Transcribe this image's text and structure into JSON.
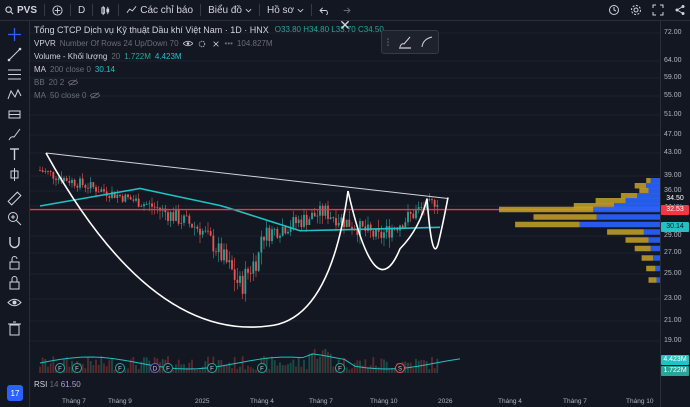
{
  "topbar": {
    "symbol": "PVS",
    "interval": "D",
    "indicators_label": "Các chỉ báo",
    "chart_type_label": "Biểu đồ",
    "template_label": "Hồ sơ"
  },
  "header": {
    "title": "Tổng CTCP Dịch vụ Kỹ thuật Dầu khí Việt Nam · 1D · HNX",
    "ohlc": {
      "o": "O33.80",
      "h": "H34.80",
      "l": "L33.70",
      "c": "C34.50"
    }
  },
  "legends": [
    {
      "label": "VPVR",
      "params": "Number Of Rows 24 Up/Down 70",
      "value": "104.827M"
    },
    {
      "label": "Volume - Khối lượng",
      "params": "20",
      "value": "1.722M",
      "value2": "4.423M"
    },
    {
      "label": "MA",
      "params": "200 close 0",
      "value": "30.14"
    },
    {
      "label": "BB",
      "params": "20 2",
      "value": ""
    },
    {
      "label": "MA",
      "params": "50 close 0",
      "value": ""
    }
  ],
  "rsi": {
    "label": "RSI",
    "period": "14",
    "value": "61.50"
  },
  "price_axis": {
    "ticks": [
      "72.00",
      "64.00",
      "59.00",
      "55.00",
      "51.00",
      "47.00",
      "43.00",
      "39.00",
      "36.00",
      "33.00",
      "29.00",
      "27.00",
      "25.00",
      "23.00",
      "21.00",
      "19.00"
    ],
    "tick_values": [
      72,
      64,
      59,
      55,
      51,
      47,
      43,
      39,
      36,
      33,
      29,
      27,
      25,
      23,
      21,
      19
    ],
    "badges": [
      {
        "text": "34.50",
        "color": "#131722",
        "fg": "#ffffff",
        "price": 34.5
      },
      {
        "text": "32.53",
        "color": "#f23645",
        "fg": "#ffffff",
        "price": 32.53
      },
      {
        "text": "30.14",
        "color": "#22c1c3",
        "fg": "#131722",
        "price": 30.14
      }
    ],
    "volume_badges": [
      {
        "text": "4.423M",
        "color": "#22c1c3"
      },
      {
        "text": "1.722M",
        "color": "#26a69a"
      }
    ]
  },
  "time_axis": [
    "Tháng 7",
    "Tháng 9",
    "2025",
    "Tháng 4",
    "Tháng 7",
    "Tháng 10",
    "2026",
    "Tháng 4",
    "Tháng 7",
    "Tháng 10"
  ],
  "colors": {
    "background": "#131722",
    "accent": "#2962ff",
    "up": "#26a69a",
    "down": "#ef5350",
    "ma200": "#22c1c3",
    "hline": "#f23645",
    "vp_up": "#2962ff",
    "vp_down": "#c9a227"
  },
  "event_markers": [
    "F",
    "F",
    "F",
    "D",
    "F",
    "F",
    "F",
    "F",
    "S"
  ]
}
